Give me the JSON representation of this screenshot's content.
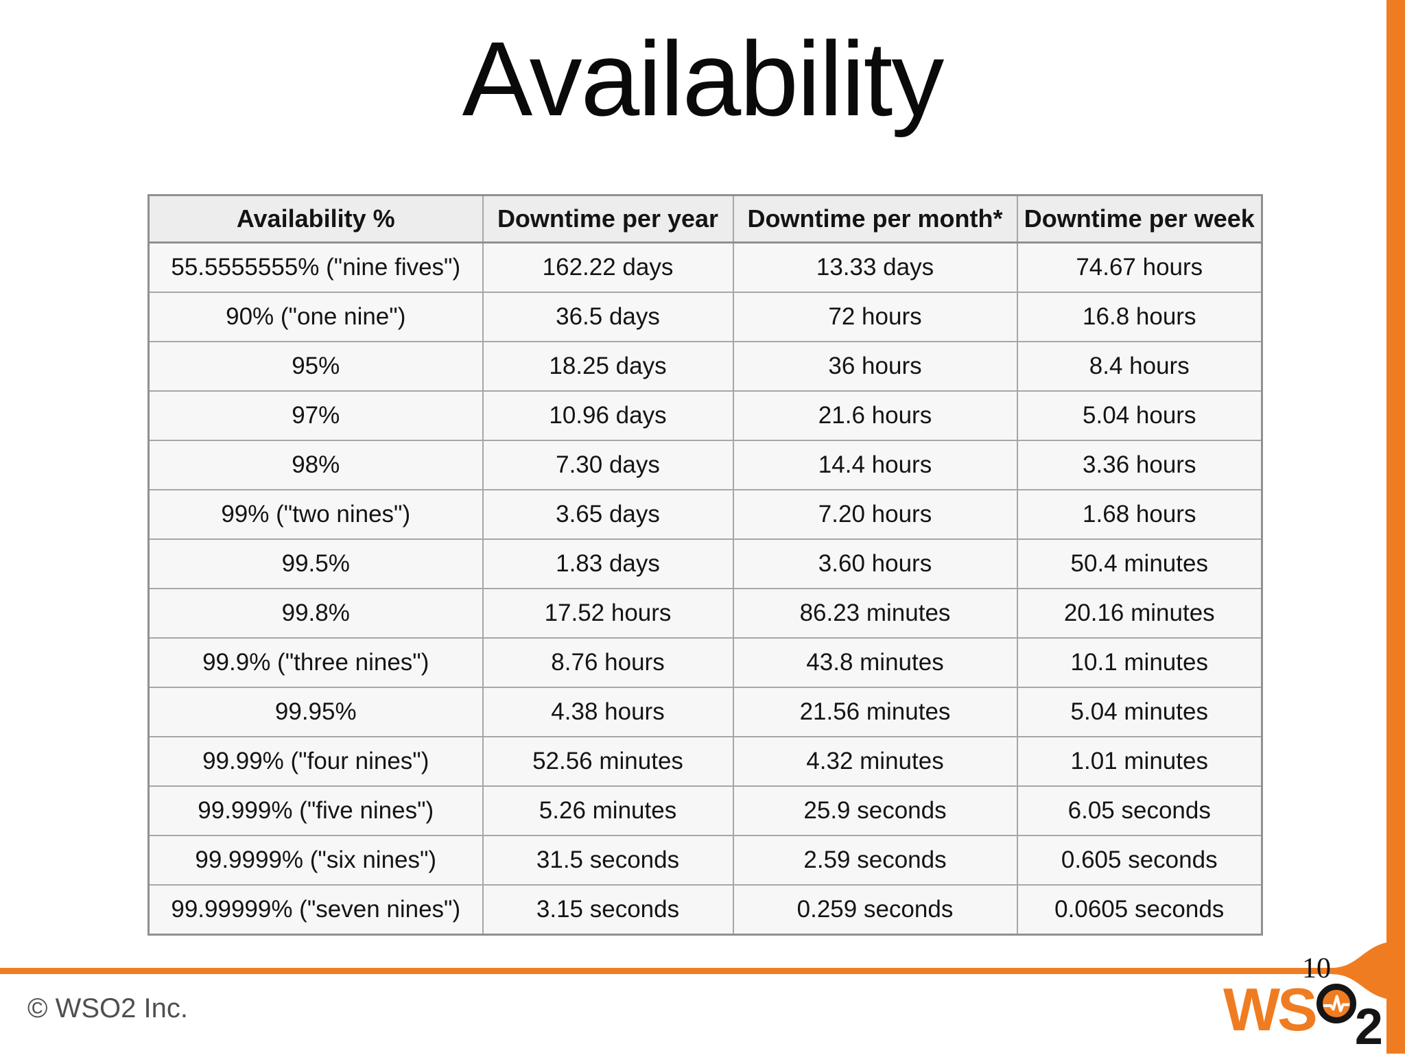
{
  "slide": {
    "title": "Availability",
    "page_number": "10",
    "copyright": "© WSO2 Inc.",
    "accent_color": "#f07c21",
    "logo": {
      "ws": "WS",
      "subscript": "2"
    }
  },
  "table": {
    "headers": [
      "Availability %",
      "Downtime per year",
      "Downtime per month*",
      "Downtime per week"
    ],
    "rows": [
      [
        "55.5555555% (\"nine fives\")",
        "162.22 days",
        "13.33 days",
        "74.67 hours"
      ],
      [
        "90% (\"one nine\")",
        "36.5 days",
        "72 hours",
        "16.8 hours"
      ],
      [
        "95%",
        "18.25 days",
        "36 hours",
        "8.4 hours"
      ],
      [
        "97%",
        "10.96 days",
        "21.6 hours",
        "5.04 hours"
      ],
      [
        "98%",
        "7.30 days",
        "14.4 hours",
        "3.36 hours"
      ],
      [
        "99% (\"two nines\")",
        "3.65 days",
        "7.20 hours",
        "1.68 hours"
      ],
      [
        "99.5%",
        "1.83 days",
        "3.60 hours",
        "50.4 minutes"
      ],
      [
        "99.8%",
        "17.52 hours",
        "86.23 minutes",
        "20.16 minutes"
      ],
      [
        "99.9% (\"three nines\")",
        "8.76 hours",
        "43.8 minutes",
        "10.1 minutes"
      ],
      [
        "99.95%",
        "4.38 hours",
        "21.56 minutes",
        "5.04 minutes"
      ],
      [
        "99.99% (\"four nines\")",
        "52.56 minutes",
        "4.32 minutes",
        "1.01 minutes"
      ],
      [
        "99.999% (\"five nines\")",
        "5.26 minutes",
        "25.9 seconds",
        "6.05 seconds"
      ],
      [
        "99.9999% (\"six nines\")",
        "31.5 seconds",
        "2.59 seconds",
        "0.605 seconds"
      ],
      [
        "99.99999% (\"seven nines\")",
        "3.15 seconds",
        "0.259 seconds",
        "0.0605 seconds"
      ]
    ]
  }
}
